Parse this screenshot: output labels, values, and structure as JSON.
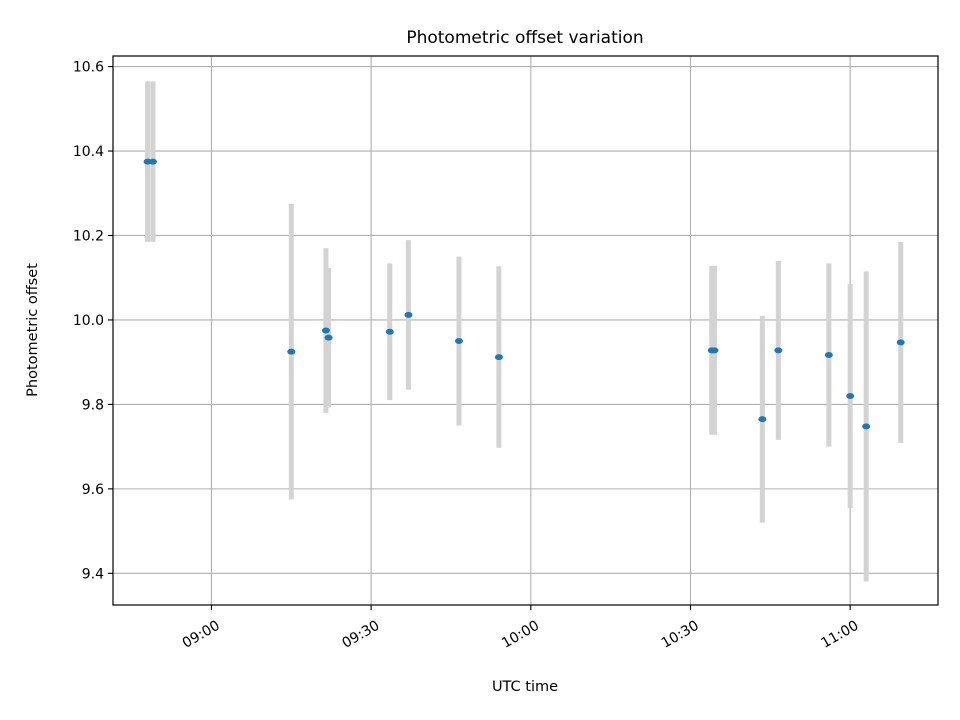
{
  "chart_data": {
    "type": "scatter",
    "title": "Photometric offset variation",
    "xlabel": "UTC time",
    "ylabel": "Photometric offset",
    "x_tick_labels": [
      "09:00",
      "09:30",
      "10:00",
      "10:30",
      "11:00"
    ],
    "x_ticks": [
      "09:00",
      "09:30",
      "10:00",
      "10:30",
      "11:00"
    ],
    "y_ticks": [
      9.4,
      9.6,
      9.8,
      10.0,
      10.2,
      10.4,
      10.6
    ],
    "y_tick_labels": [
      "9.4",
      "9.6",
      "9.8",
      "10.0",
      "10.2",
      "10.4",
      "10.6"
    ],
    "xlim": [
      "08:41:30",
      "11:16:30"
    ],
    "ylim": [
      9.325,
      10.625
    ],
    "grid": true,
    "error_bars": true,
    "point_color": "#1f77b4",
    "errorbar_color": "#d3d3d3",
    "points": [
      {
        "x": "08:48:00",
        "y": 10.375,
        "yerr": 0.19
      },
      {
        "x": "08:49:00",
        "y": 10.375,
        "yerr": 0.19
      },
      {
        "x": "09:15:00",
        "y": 9.925,
        "yerr": 0.35
      },
      {
        "x": "09:21:30",
        "y": 9.975,
        "yerr": 0.195
      },
      {
        "x": "09:22:00",
        "y": 9.958,
        "yerr": 0.165
      },
      {
        "x": "09:33:30",
        "y": 9.972,
        "yerr": 0.162
      },
      {
        "x": "09:37:00",
        "y": 10.012,
        "yerr": 0.177
      },
      {
        "x": "09:46:30",
        "y": 9.95,
        "yerr": 0.2
      },
      {
        "x": "09:54:00",
        "y": 9.912,
        "yerr": 0.215
      },
      {
        "x": "10:34:00",
        "y": 9.928,
        "yerr": 0.2
      },
      {
        "x": "10:34:30",
        "y": 9.928,
        "yerr": 0.2
      },
      {
        "x": "10:43:30",
        "y": 9.765,
        "yerr": 0.245
      },
      {
        "x": "10:46:30",
        "y": 9.928,
        "yerr": 0.212
      },
      {
        "x": "10:56:00",
        "y": 9.917,
        "yerr": 0.217
      },
      {
        "x": "11:00:00",
        "y": 9.82,
        "yerr": 0.265
      },
      {
        "x": "11:03:00",
        "y": 9.748,
        "yerr": 0.367
      },
      {
        "x": "11:09:30",
        "y": 9.947,
        "yerr": 0.238
      }
    ]
  }
}
